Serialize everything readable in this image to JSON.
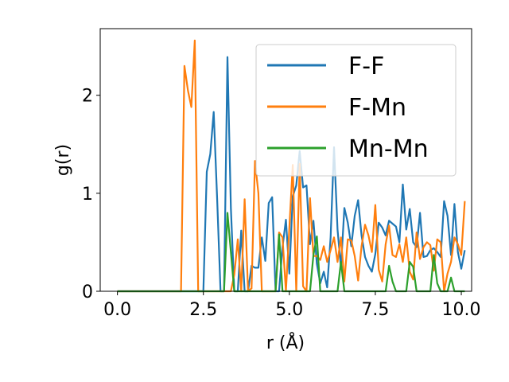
{
  "chart_data": {
    "type": "line",
    "xlabel": "r (Å)",
    "ylabel": "g(r)",
    "xlim": [
      -0.5,
      10.3
    ],
    "ylim": [
      0,
      2.68
    ],
    "xticks": [
      0.0,
      2.5,
      5.0,
      7.5,
      10.0
    ],
    "xtick_labels": [
      "0.0",
      "2.5",
      "5.0",
      "7.5",
      "10.0"
    ],
    "yticks": [
      0,
      1,
      2
    ],
    "ytick_labels": [
      "0",
      "1",
      "2"
    ],
    "grid": false,
    "legend_position": "top-right",
    "series": [
      {
        "name": "F-F",
        "color": "#1f77b4",
        "points": [
          [
            0.0,
            0
          ],
          [
            2.4,
            0
          ],
          [
            2.5,
            0
          ],
          [
            2.6,
            1.22
          ],
          [
            2.7,
            1.4
          ],
          [
            2.8,
            1.83
          ],
          [
            2.9,
            0.95
          ],
          [
            3.0,
            0
          ],
          [
            3.1,
            0
          ],
          [
            3.2,
            2.39
          ],
          [
            3.3,
            0.85
          ],
          [
            3.4,
            0
          ],
          [
            3.5,
            0
          ],
          [
            3.6,
            0.62
          ],
          [
            3.7,
            0
          ],
          [
            3.8,
            0
          ],
          [
            3.9,
            0.26
          ],
          [
            4.0,
            0.24
          ],
          [
            4.1,
            0.24
          ],
          [
            4.2,
            0.55
          ],
          [
            4.3,
            0.31
          ],
          [
            4.4,
            0.9
          ],
          [
            4.5,
            0.96
          ],
          [
            4.6,
            0
          ],
          [
            4.7,
            0
          ],
          [
            4.8,
            0.45
          ],
          [
            4.9,
            0.73
          ],
          [
            5.0,
            0.18
          ],
          [
            5.1,
            0.97
          ],
          [
            5.2,
            1.08
          ],
          [
            5.3,
            1.43
          ],
          [
            5.4,
            1.06
          ],
          [
            5.5,
            1.08
          ],
          [
            5.6,
            0.48
          ],
          [
            5.7,
            0.72
          ],
          [
            5.8,
            0.28
          ],
          [
            5.9,
            0.08
          ],
          [
            6.0,
            0.2
          ],
          [
            6.1,
            0.04
          ],
          [
            6.2,
            0.55
          ],
          [
            6.3,
            1.47
          ],
          [
            6.4,
            0.63
          ],
          [
            6.5,
            0.24
          ],
          [
            6.6,
            0.85
          ],
          [
            6.7,
            0.7
          ],
          [
            6.8,
            0.46
          ],
          [
            6.9,
            0.77
          ],
          [
            7.0,
            0.93
          ],
          [
            7.1,
            0.57
          ],
          [
            7.2,
            0.35
          ],
          [
            7.3,
            0.26
          ],
          [
            7.4,
            0.2
          ],
          [
            7.5,
            0.38
          ],
          [
            7.6,
            0.7
          ],
          [
            7.7,
            0.65
          ],
          [
            7.8,
            0.57
          ],
          [
            7.9,
            0.72
          ],
          [
            8.0,
            0.69
          ],
          [
            8.1,
            0.66
          ],
          [
            8.2,
            0.5
          ],
          [
            8.3,
            1.09
          ],
          [
            8.4,
            0.63
          ],
          [
            8.5,
            0.84
          ],
          [
            8.6,
            0.5
          ],
          [
            8.7,
            0.45
          ],
          [
            8.8,
            0.8
          ],
          [
            8.9,
            0.35
          ],
          [
            9.0,
            0.36
          ],
          [
            9.1,
            0.42
          ],
          [
            9.2,
            0.44
          ],
          [
            9.3,
            0.4
          ],
          [
            9.4,
            0.35
          ],
          [
            9.5,
            0.92
          ],
          [
            9.6,
            0.77
          ],
          [
            9.7,
            0.37
          ],
          [
            9.8,
            0.89
          ],
          [
            9.9,
            0.4
          ],
          [
            10.0,
            0.23
          ],
          [
            10.1,
            0.42
          ]
        ]
      },
      {
        "name": "F-Mn",
        "color": "#ff7f0e",
        "points": [
          [
            0.0,
            0
          ],
          [
            1.85,
            0
          ],
          [
            1.95,
            2.3
          ],
          [
            2.05,
            2.05
          ],
          [
            2.15,
            1.88
          ],
          [
            2.25,
            2.56
          ],
          [
            2.35,
            0
          ],
          [
            3.3,
            0
          ],
          [
            3.4,
            0.17
          ],
          [
            3.5,
            0.53
          ],
          [
            3.6,
            0
          ],
          [
            3.7,
            0.94
          ],
          [
            3.8,
            0
          ],
          [
            3.9,
            0.03
          ],
          [
            4.0,
            1.33
          ],
          [
            4.1,
            1.0
          ],
          [
            4.2,
            0
          ],
          [
            4.6,
            0
          ],
          [
            4.7,
            0.6
          ],
          [
            4.8,
            0.55
          ],
          [
            4.9,
            0
          ],
          [
            5.1,
            1.29
          ],
          [
            5.2,
            0.0
          ],
          [
            5.3,
            1.3
          ],
          [
            5.4,
            0.05
          ],
          [
            5.5,
            0
          ],
          [
            5.6,
            0.95
          ],
          [
            5.7,
            0.36
          ],
          [
            5.8,
            0.36
          ],
          [
            5.9,
            0.32
          ],
          [
            6.0,
            0.46
          ],
          [
            6.1,
            0.3
          ],
          [
            6.2,
            0.42
          ],
          [
            6.3,
            0.55
          ],
          [
            6.4,
            0.3
          ],
          [
            6.5,
            0.55
          ],
          [
            6.6,
            0.1
          ],
          [
            6.7,
            0.53
          ],
          [
            6.8,
            0.52
          ],
          [
            6.9,
            0.36
          ],
          [
            7.0,
            0.11
          ],
          [
            7.1,
            0.46
          ],
          [
            7.2,
            0.68
          ],
          [
            7.3,
            0.57
          ],
          [
            7.4,
            0.4
          ],
          [
            7.5,
            0.88
          ],
          [
            7.6,
            0.22
          ],
          [
            7.7,
            0.1
          ],
          [
            7.8,
            0.48
          ],
          [
            7.9,
            0.67
          ],
          [
            8.0,
            0.37
          ],
          [
            8.1,
            0.35
          ],
          [
            8.2,
            0.48
          ],
          [
            8.3,
            0.3
          ],
          [
            8.4,
            0.55
          ],
          [
            8.5,
            0.2
          ],
          [
            8.6,
            0.12
          ],
          [
            8.7,
            0.6
          ],
          [
            8.8,
            0.33
          ],
          [
            8.9,
            0.45
          ],
          [
            9.0,
            0.5
          ],
          [
            9.1,
            0.47
          ],
          [
            9.2,
            0.21
          ],
          [
            9.3,
            0.53
          ],
          [
            9.4,
            0.5
          ],
          [
            9.5,
            0.0
          ],
          [
            9.6,
            0.18
          ],
          [
            9.7,
            0.3
          ],
          [
            9.8,
            0.55
          ],
          [
            9.9,
            0.48
          ],
          [
            10.0,
            0.37
          ],
          [
            10.1,
            0.92
          ]
        ]
      },
      {
        "name": "Mn-Mn",
        "color": "#2ca02c",
        "points": [
          [
            0.0,
            0
          ],
          [
            3.1,
            0
          ],
          [
            3.2,
            0.8
          ],
          [
            3.3,
            0.4
          ],
          [
            3.4,
            0
          ],
          [
            4.6,
            0
          ],
          [
            4.7,
            0.58
          ],
          [
            4.8,
            0
          ],
          [
            5.6,
            0
          ],
          [
            5.7,
            0.37
          ],
          [
            5.8,
            0.56
          ],
          [
            5.9,
            0
          ],
          [
            6.4,
            0
          ],
          [
            6.5,
            0.3
          ],
          [
            6.6,
            0
          ],
          [
            7.8,
            0
          ],
          [
            7.9,
            0.26
          ],
          [
            8.0,
            0.1
          ],
          [
            8.1,
            0
          ],
          [
            8.4,
            0
          ],
          [
            8.5,
            0.3
          ],
          [
            8.6,
            0.25
          ],
          [
            8.7,
            0
          ],
          [
            9.1,
            0
          ],
          [
            9.2,
            0.37
          ],
          [
            9.3,
            0.08
          ],
          [
            9.4,
            0
          ],
          [
            9.6,
            0
          ],
          [
            9.7,
            0.14
          ],
          [
            9.8,
            0
          ],
          [
            10.1,
            0
          ]
        ]
      }
    ]
  }
}
